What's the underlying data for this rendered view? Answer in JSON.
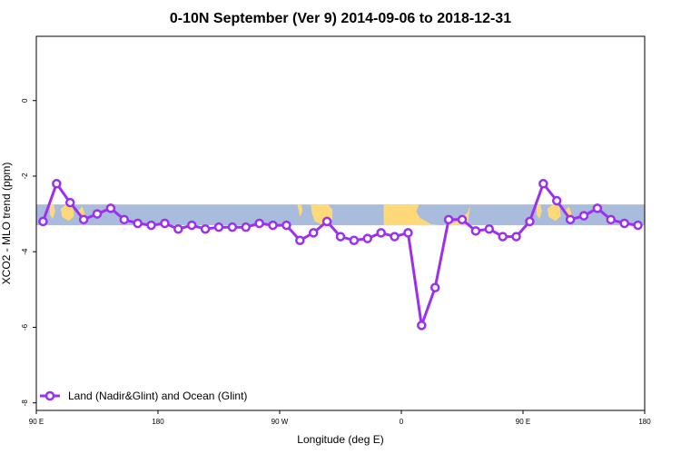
{
  "chart_data": {
    "type": "line",
    "title": "0-10N September (Ver 9)   2014-09-06 to 2018-12-31",
    "xlabel": "Longitude (deg E)",
    "ylabel": "XCO2 - MLO trend (ppm)",
    "xlim": [
      90,
      540
    ],
    "ylim": [
      -8.2,
      1.7
    ],
    "x_ticks": [
      {
        "value": 90,
        "label": "90 E"
      },
      {
        "value": 180,
        "label": "180"
      },
      {
        "value": 270,
        "label": "90 W"
      },
      {
        "value": 360,
        "label": "0"
      },
      {
        "value": 450,
        "label": "90 E"
      },
      {
        "value": 540,
        "label": "180"
      }
    ],
    "y_ticks": [
      {
        "value": 0,
        "label": "0"
      },
      {
        "value": -2,
        "label": "-2"
      },
      {
        "value": -4,
        "label": "-4"
      },
      {
        "value": -6,
        "label": "-6"
      },
      {
        "value": -8,
        "label": "-8"
      }
    ],
    "map_band": {
      "lat_range": [
        0,
        10
      ],
      "y_range": [
        -3.3,
        -2.75
      ],
      "ocean_color": "#a9bcdb",
      "land_color": "#fdd97a"
    },
    "series": [
      {
        "name": "Land (Nadir&Glint) and Ocean (Glint)",
        "color": "#9b30f0",
        "x": [
          95,
          105,
          115,
          125,
          135,
          145,
          155,
          165,
          175,
          185,
          195,
          205,
          215,
          225,
          235,
          245,
          255,
          265,
          275,
          285,
          295,
          305,
          315,
          325,
          335,
          345,
          355,
          365,
          375,
          385,
          395,
          405,
          415,
          425,
          435,
          445,
          455,
          465,
          475,
          485,
          495,
          505,
          515,
          525,
          535
        ],
        "y": [
          -3.2,
          -2.2,
          -2.7,
          -3.15,
          -3.0,
          -2.85,
          -3.15,
          -3.25,
          -3.3,
          -3.25,
          -3.4,
          -3.3,
          -3.4,
          -3.35,
          -3.35,
          -3.35,
          -3.25,
          -3.3,
          -3.3,
          -3.7,
          -3.5,
          -3.2,
          -3.6,
          -3.7,
          -3.65,
          -3.5,
          -3.6,
          -3.5,
          -5.95,
          -4.95,
          -3.15,
          -3.15,
          -3.45,
          -3.4,
          -3.6,
          -3.6,
          -3.2,
          -2.2,
          -2.65,
          -3.15,
          -3.05,
          -2.85,
          -3.15,
          -3.25,
          -3.3
        ]
      }
    ],
    "legend": {
      "position": "bottom-left"
    }
  }
}
